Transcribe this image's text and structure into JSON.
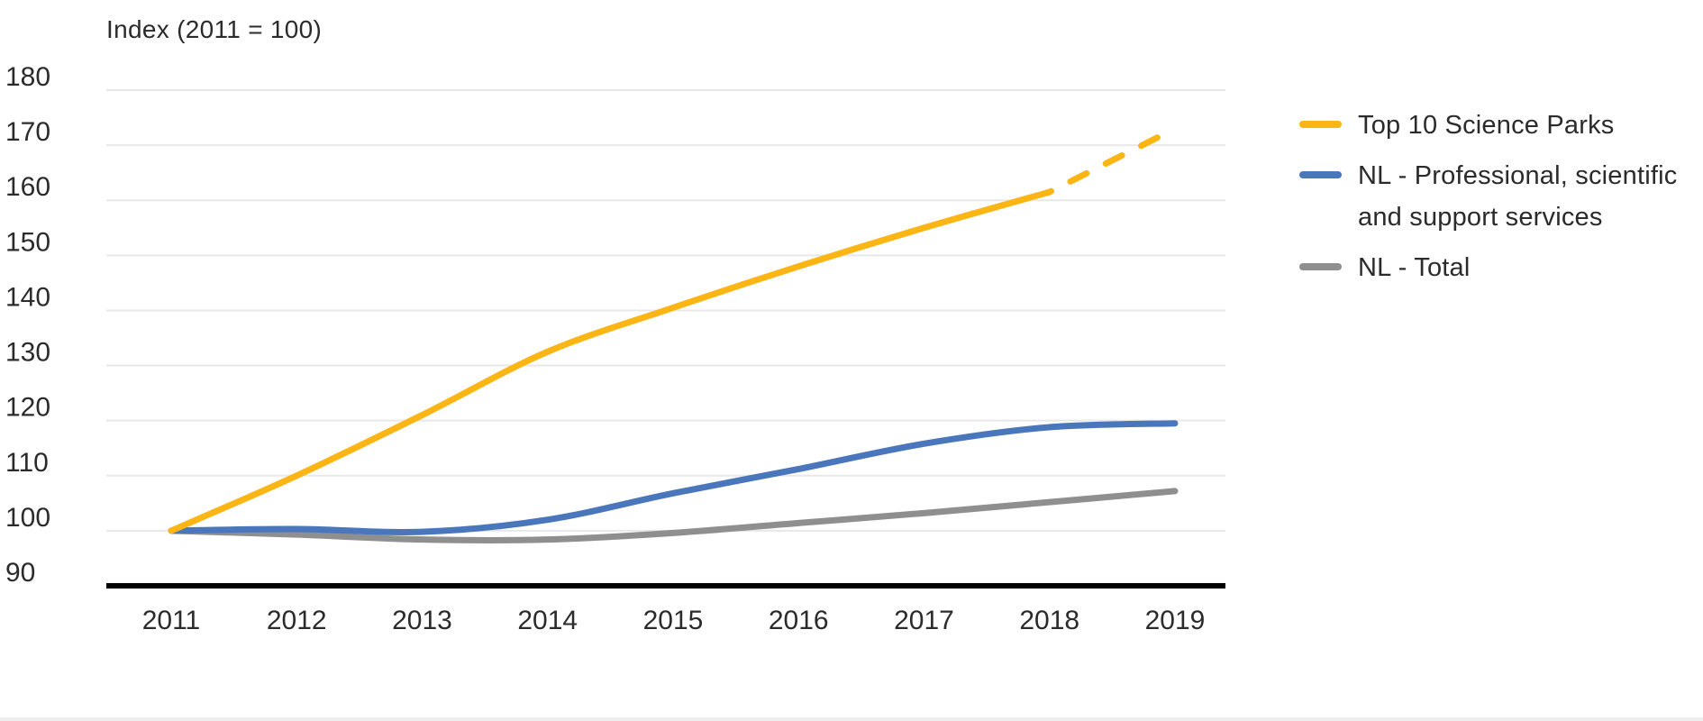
{
  "title": "Index (2011 = 100)",
  "chart_data": {
    "type": "line",
    "title": "Index (2011 = 100)",
    "x": [
      2011,
      2012,
      2013,
      2014,
      2015,
      2016,
      2017,
      2018,
      2019
    ],
    "x_labels": [
      "2011",
      "2012",
      "2013",
      "2014",
      "2015",
      "2016",
      "2017",
      "2018",
      "2019"
    ],
    "y_axis": {
      "min": 90,
      "max": 180,
      "step": 10,
      "tick_labels": [
        "90",
        "100",
        "110",
        "120",
        "130",
        "140",
        "150",
        "160",
        "170",
        "180"
      ]
    },
    "grid": true,
    "legend_position": "right",
    "series": [
      {
        "name": "Top 10 Science Parks",
        "color": "#FBB615",
        "values": [
          100,
          110,
          121,
          132.5,
          140.5,
          148,
          155,
          161.5,
          173
        ],
        "dashed_from_index": 7,
        "note": "segment 2018-2019 drawn dashed (forecast)"
      },
      {
        "name": "NL - Professional, scientific and support services",
        "color": "#4A76BC",
        "values": [
          100,
          100.3,
          99.8,
          102,
          106.8,
          111.2,
          115.8,
          118.8,
          119.5
        ]
      },
      {
        "name": "NL - Total",
        "color": "#8F8F8F",
        "values": [
          100,
          99.3,
          98.4,
          98.4,
          99.6,
          101.4,
          103.2,
          105.2,
          107.2
        ]
      }
    ],
    "colors": {
      "gridline": "#E8E8E8",
      "axis_line": "#000000",
      "text": "#2B2B2B"
    }
  }
}
